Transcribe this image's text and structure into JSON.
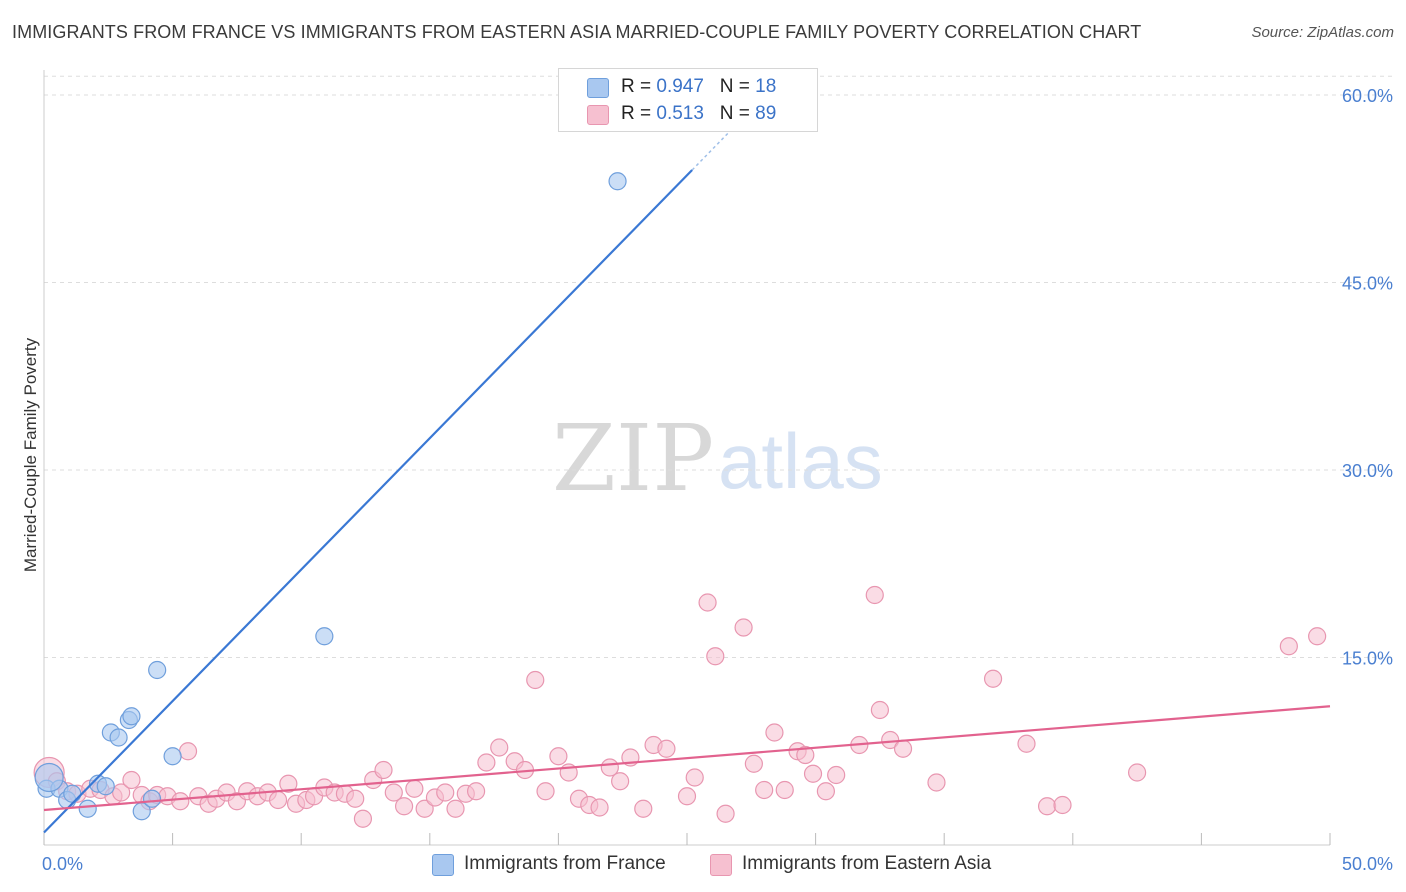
{
  "title": "IMMIGRANTS FROM FRANCE VS IMMIGRANTS FROM EASTERN ASIA MARRIED-COUPLE FAMILY POVERTY CORRELATION CHART",
  "source": "Source: ZipAtlas.com",
  "watermark": {
    "zip": "ZIP",
    "atlas": "atlas"
  },
  "legend": {
    "france": {
      "r_label": "R =",
      "r_value": "0.947",
      "n_label": "N =",
      "n_value": "18"
    },
    "asia": {
      "r_label": "R =",
      "r_value": "0.513",
      "n_label": "N =",
      "n_value": "89"
    }
  },
  "colors": {
    "france_fill": "#a9c8f0",
    "france_stroke": "#6f9fdc",
    "france_line": "#3a78d4",
    "asia_fill": "#f6c0d0",
    "asia_stroke": "#e896b0",
    "asia_line": "#e2628e",
    "grid": "#dddddd",
    "tick_text": "#4a7fd0"
  },
  "chart_data": {
    "type": "scatter",
    "title": "IMMIGRANTS FROM FRANCE VS IMMIGRANTS FROM EASTERN ASIA MARRIED-COUPLE FAMILY POVERTY CORRELATION CHART",
    "xlabel": "",
    "ylabel": "Married-Couple Family Poverty",
    "xlim": [
      0,
      50
    ],
    "ylim": [
      0,
      62
    ],
    "x_tick_labels": [
      "0.0%",
      "50.0%"
    ],
    "y_ticks": [
      15,
      30,
      45,
      60
    ],
    "y_tick_labels": [
      "15.0%",
      "30.0%",
      "45.0%",
      "60.0%"
    ],
    "series": [
      {
        "name": "Immigrants from France",
        "points": [
          [
            0.1,
            4.5
          ],
          [
            0.6,
            4.5
          ],
          [
            0.9,
            3.6
          ],
          [
            1.1,
            4.1
          ],
          [
            1.7,
            2.9
          ],
          [
            2.1,
            4.9
          ],
          [
            2.4,
            4.7
          ],
          [
            2.6,
            9.0
          ],
          [
            2.9,
            8.6
          ],
          [
            3.3,
            10.0
          ],
          [
            3.4,
            10.3
          ],
          [
            3.8,
            2.7
          ],
          [
            4.2,
            3.7
          ],
          [
            4.4,
            14.0
          ],
          [
            5.0,
            7.1
          ],
          [
            10.9,
            16.7
          ],
          [
            22.3,
            53.1
          ],
          [
            0.2,
            5.4
          ]
        ],
        "trend": {
          "x0": 0.0,
          "y0": 1.0,
          "x1": 25.2,
          "y1": 54.0,
          "x_dash_end": 27.0,
          "y_dash_end": 57.8
        }
      },
      {
        "name": "Immigrants from Eastern Asia",
        "points": [
          [
            0.2,
            5.8
          ],
          [
            0.5,
            5.1
          ],
          [
            0.9,
            4.3
          ],
          [
            1.3,
            4.1
          ],
          [
            1.8,
            4.5
          ],
          [
            2.2,
            4.4
          ],
          [
            2.7,
            3.9
          ],
          [
            3.0,
            4.2
          ],
          [
            3.4,
            5.2
          ],
          [
            3.8,
            4.0
          ],
          [
            4.1,
            3.5
          ],
          [
            4.4,
            4.0
          ],
          [
            4.8,
            3.9
          ],
          [
            5.3,
            3.5
          ],
          [
            5.6,
            7.5
          ],
          [
            6.0,
            3.9
          ],
          [
            6.4,
            3.3
          ],
          [
            6.7,
            3.7
          ],
          [
            7.1,
            4.2
          ],
          [
            7.5,
            3.5
          ],
          [
            7.9,
            4.3
          ],
          [
            8.3,
            3.9
          ],
          [
            8.7,
            4.2
          ],
          [
            9.1,
            3.6
          ],
          [
            9.5,
            4.9
          ],
          [
            9.8,
            3.3
          ],
          [
            10.2,
            3.6
          ],
          [
            10.5,
            3.9
          ],
          [
            10.9,
            4.6
          ],
          [
            11.3,
            4.2
          ],
          [
            11.7,
            4.1
          ],
          [
            12.1,
            3.7
          ],
          [
            12.4,
            2.1
          ],
          [
            12.8,
            5.2
          ],
          [
            13.2,
            6.0
          ],
          [
            13.6,
            4.2
          ],
          [
            14.0,
            3.1
          ],
          [
            14.4,
            4.5
          ],
          [
            14.8,
            2.9
          ],
          [
            15.2,
            3.8
          ],
          [
            15.6,
            4.2
          ],
          [
            16.0,
            2.9
          ],
          [
            16.4,
            4.1
          ],
          [
            16.8,
            4.3
          ],
          [
            17.2,
            6.6
          ],
          [
            17.7,
            7.8
          ],
          [
            18.3,
            6.7
          ],
          [
            18.7,
            6.0
          ],
          [
            19.1,
            13.2
          ],
          [
            19.5,
            4.3
          ],
          [
            20.0,
            7.1
          ],
          [
            20.4,
            5.8
          ],
          [
            20.8,
            3.7
          ],
          [
            21.2,
            3.2
          ],
          [
            21.6,
            3.0
          ],
          [
            22.0,
            6.2
          ],
          [
            22.4,
            5.1
          ],
          [
            22.8,
            7.0
          ],
          [
            23.3,
            2.9
          ],
          [
            23.7,
            8.0
          ],
          [
            24.2,
            7.7
          ],
          [
            25.0,
            3.9
          ],
          [
            25.3,
            5.4
          ],
          [
            25.8,
            19.4
          ],
          [
            26.1,
            15.1
          ],
          [
            26.5,
            2.5
          ],
          [
            27.2,
            17.4
          ],
          [
            27.6,
            6.5
          ],
          [
            28.0,
            4.4
          ],
          [
            28.4,
            9.0
          ],
          [
            28.8,
            4.4
          ],
          [
            29.3,
            7.5
          ],
          [
            29.6,
            7.2
          ],
          [
            29.9,
            5.7
          ],
          [
            30.4,
            4.3
          ],
          [
            30.8,
            5.6
          ],
          [
            31.7,
            8.0
          ],
          [
            32.3,
            20.0
          ],
          [
            32.5,
            10.8
          ],
          [
            32.9,
            8.4
          ],
          [
            33.4,
            7.7
          ],
          [
            34.7,
            5.0
          ],
          [
            36.9,
            13.3
          ],
          [
            38.2,
            8.1
          ],
          [
            39.0,
            3.1
          ],
          [
            39.6,
            3.2
          ],
          [
            42.5,
            5.8
          ],
          [
            48.4,
            15.9
          ],
          [
            49.5,
            16.7
          ]
        ],
        "trend": {
          "x0": 0.0,
          "y0": 2.8,
          "x1": 50.0,
          "y1": 11.1
        }
      }
    ]
  },
  "bottom_legend": {
    "france_label": "Immigrants from France",
    "asia_label": "Immigrants from Eastern Asia"
  }
}
